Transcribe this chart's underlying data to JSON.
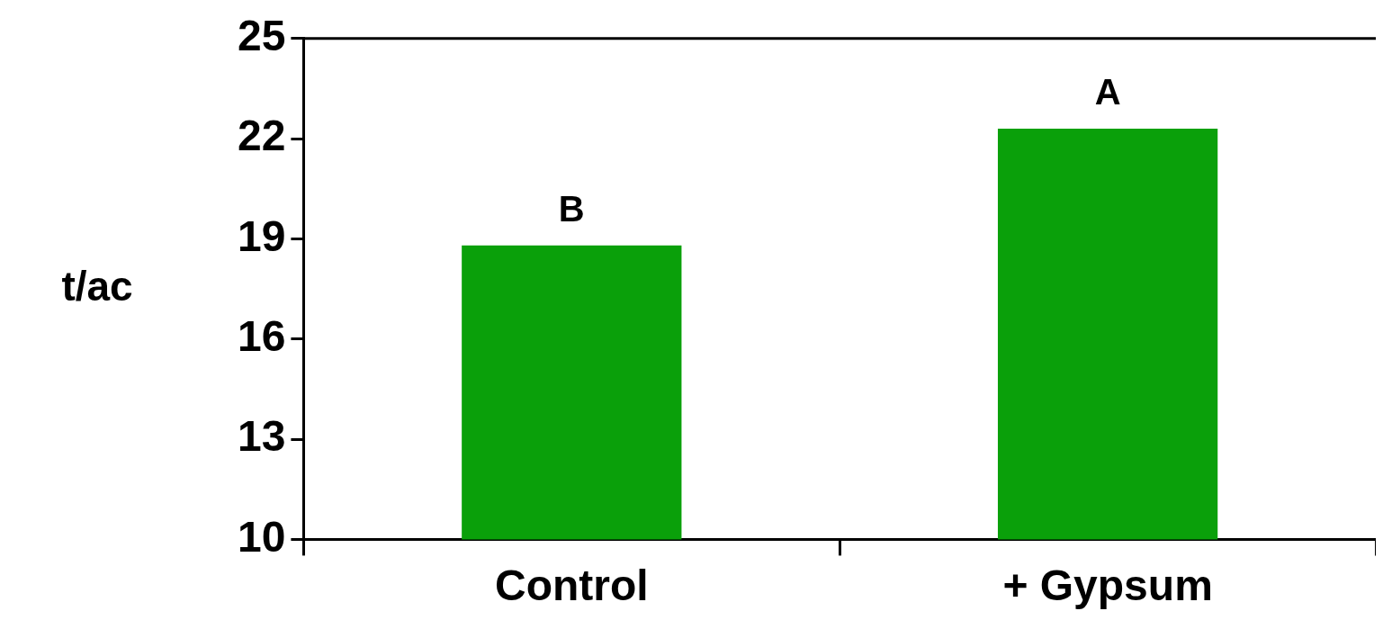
{
  "chart_data": {
    "type": "bar",
    "ylabel": "t/ac",
    "categories": [
      "Control",
      "+ Gypsum"
    ],
    "values": [
      18.8,
      22.3
    ],
    "color": "#0aa00a",
    "ylim": [
      10,
      25
    ],
    "yticks": [
      10,
      13,
      16,
      19,
      22,
      25
    ],
    "grid": false,
    "annotations": [
      {
        "text": "B",
        "x": "Control",
        "y": 18.8
      },
      {
        "text": "A",
        "x": "+ Gypsum",
        "y": 22.3
      }
    ]
  }
}
